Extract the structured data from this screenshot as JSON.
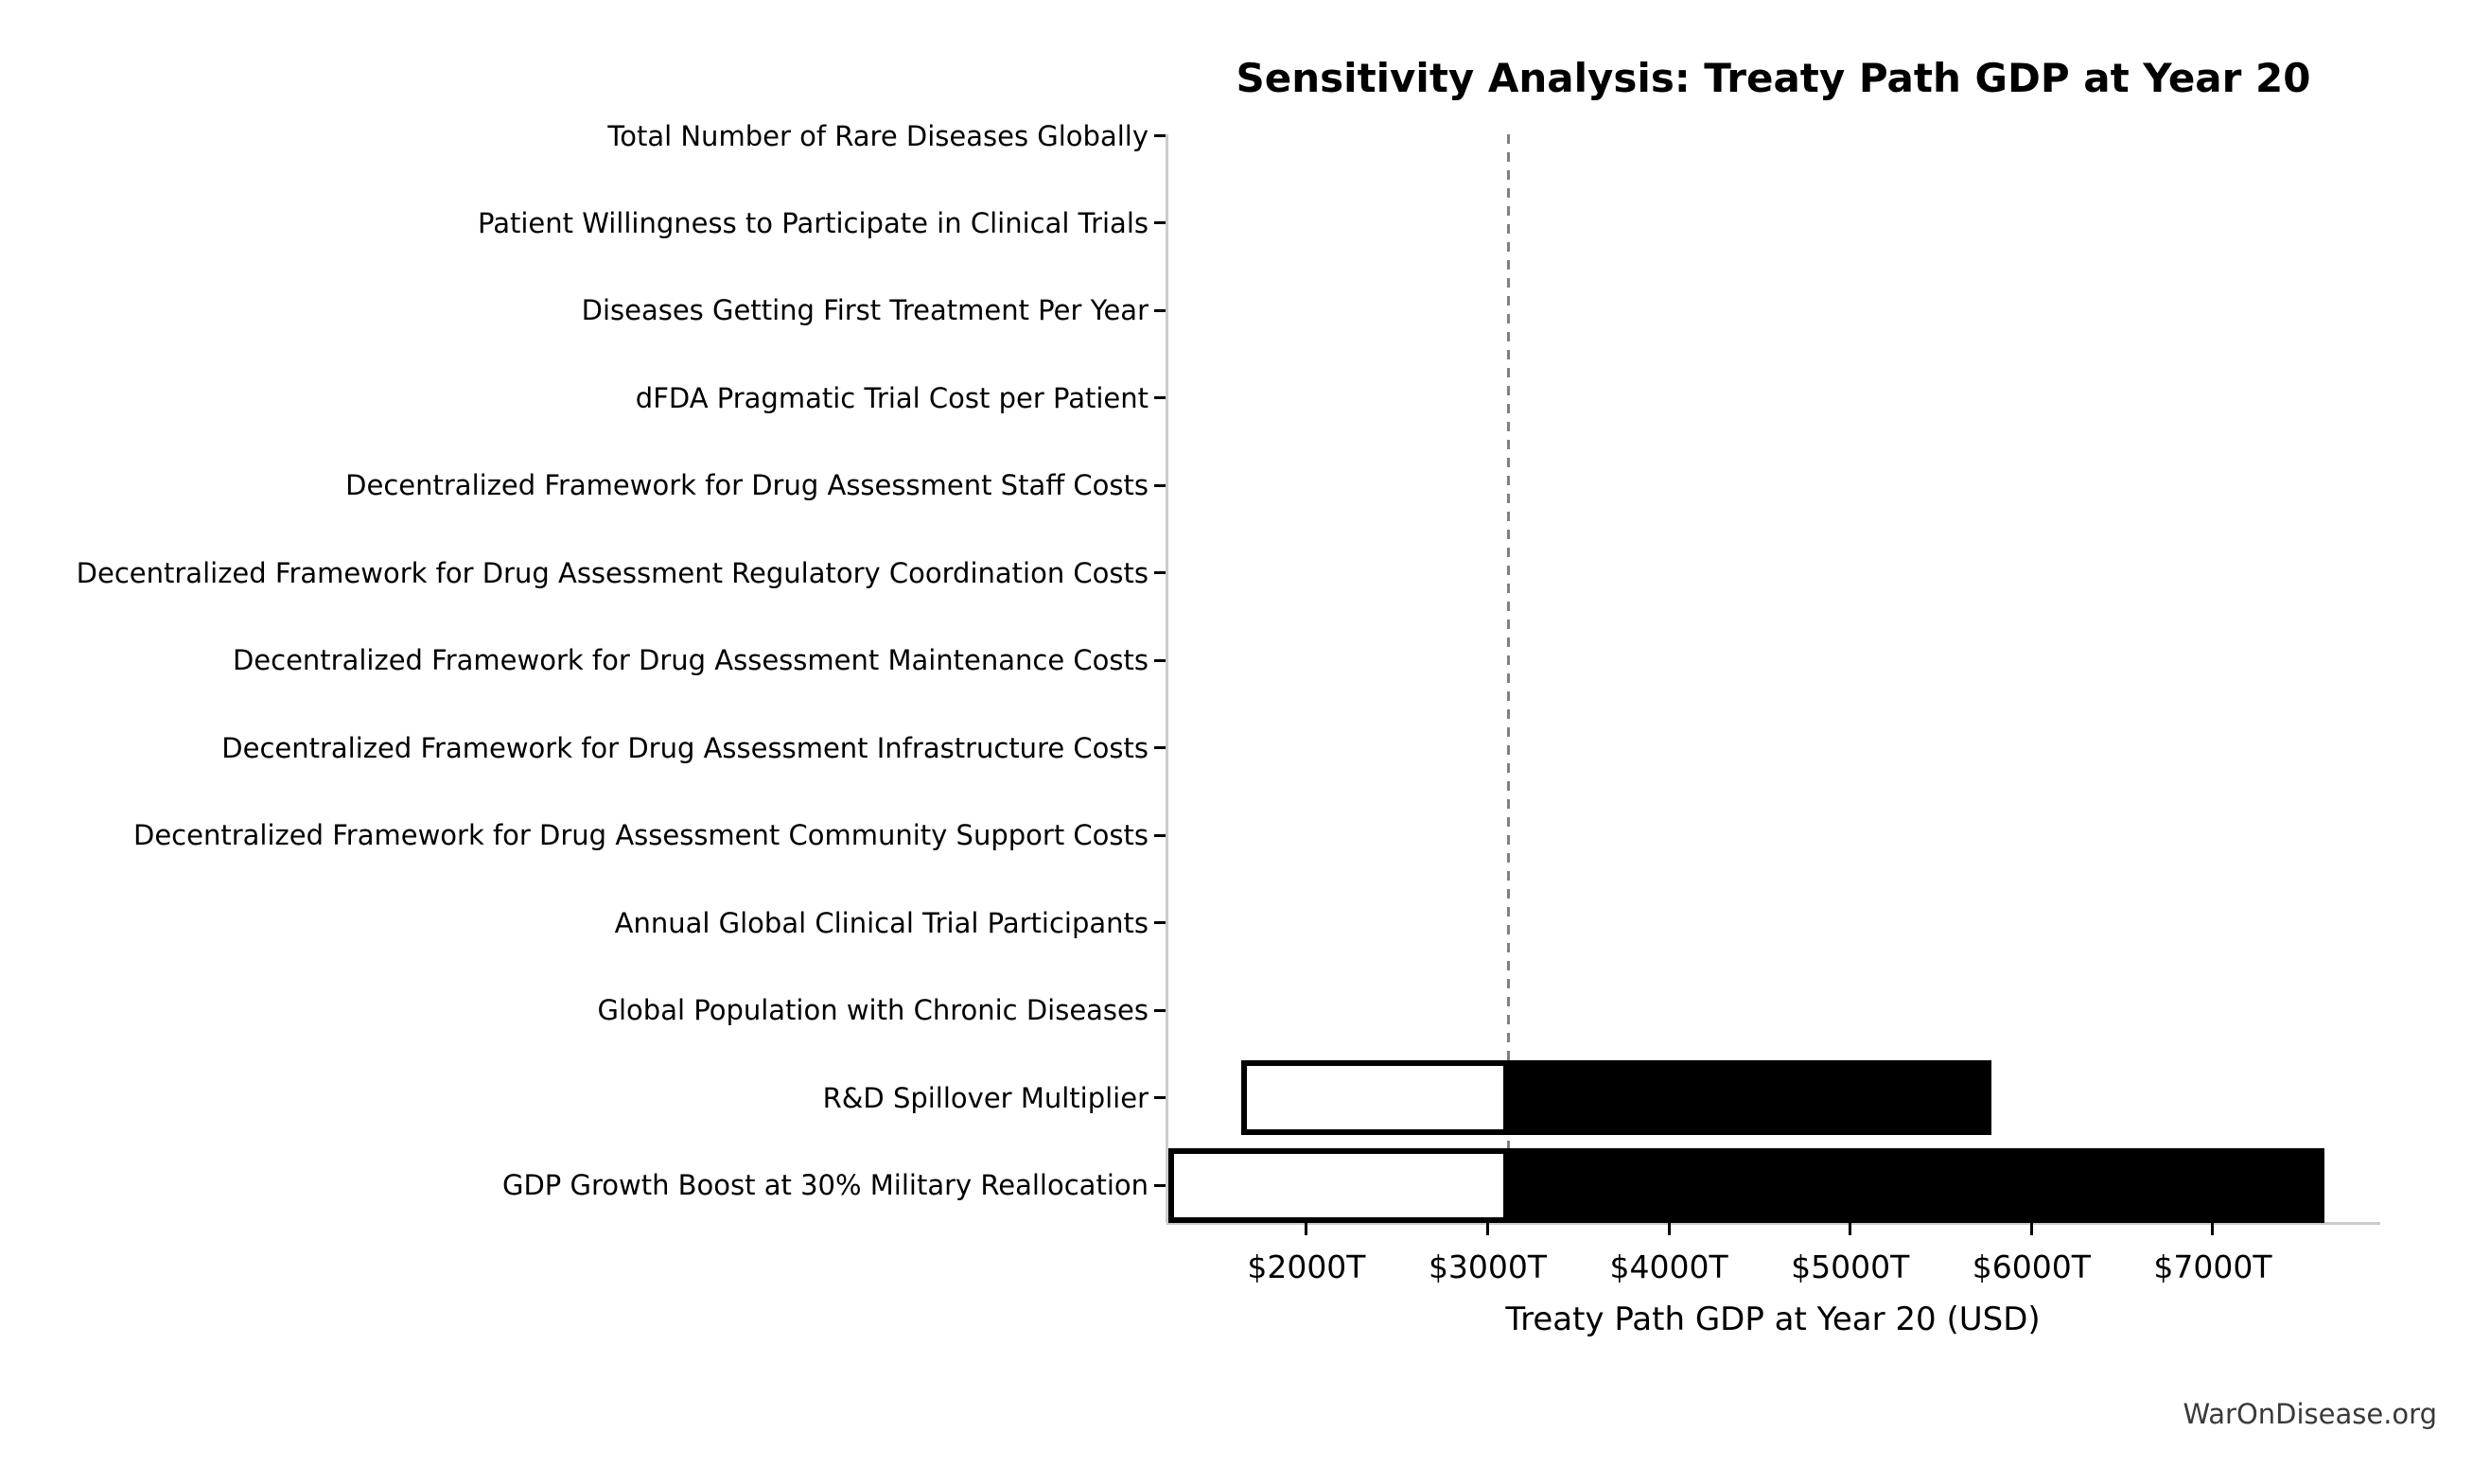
{
  "chart_data": {
    "type": "bar",
    "orientation": "horizontal",
    "variant": "tornado-sensitivity",
    "title": "Sensitivity Analysis: Treaty Path GDP at Year 20",
    "xlabel": "Treaty Path GDP at Year 20 (USD)",
    "ylabel": "",
    "unit": "trillion USD (T)",
    "grid": false,
    "legend": null,
    "watermark": "WarOnDisease.org",
    "categories": [
      "Total Number of Rare Diseases Globally",
      "Patient Willingness to Participate in Clinical Trials",
      "Diseases Getting First Treatment Per Year",
      "dFDA Pragmatic Trial Cost per Patient",
      "Decentralized Framework for Drug Assessment Staff Costs",
      "Decentralized Framework for Drug Assessment Regulatory Coordination Costs",
      "Decentralized Framework for Drug Assessment Maintenance Costs",
      "Decentralized Framework for Drug Assessment Infrastructure Costs",
      "Decentralized Framework for Drug Assessment Community Support Costs",
      "Annual Global Clinical Trial Participants",
      "Global Population with Chronic Diseases",
      "R&D Spillover Multiplier",
      "GDP Growth Boost at 30% Military Reallocation"
    ],
    "xlim": [
      1228,
      7924
    ],
    "xticks": [
      {
        "value": 2000,
        "label": "$2000T"
      },
      {
        "value": 3000,
        "label": "$3000T"
      },
      {
        "value": 4000,
        "label": "$4000T"
      },
      {
        "value": 5000,
        "label": "$5000T"
      },
      {
        "value": 6000,
        "label": "$6000T"
      },
      {
        "value": 7000,
        "label": "$7000T"
      }
    ],
    "baseline": {
      "value": 3115,
      "style": "dashed",
      "color": "#808080"
    },
    "bars": [
      {
        "category": "Total Number of Rare Diseases Globally",
        "low": null,
        "high": null
      },
      {
        "category": "Patient Willingness to Participate in Clinical Trials",
        "low": null,
        "high": null
      },
      {
        "category": "Diseases Getting First Treatment Per Year",
        "low": null,
        "high": null
      },
      {
        "category": "dFDA Pragmatic Trial Cost per Patient",
        "low": null,
        "high": null
      },
      {
        "category": "Decentralized Framework for Drug Assessment Staff Costs",
        "low": null,
        "high": null
      },
      {
        "category": "Decentralized Framework for Drug Assessment Regulatory Coordination Costs",
        "low": null,
        "high": null
      },
      {
        "category": "Decentralized Framework for Drug Assessment Maintenance Costs",
        "low": null,
        "high": null
      },
      {
        "category": "Decentralized Framework for Drug Assessment Infrastructure Costs",
        "low": null,
        "high": null
      },
      {
        "category": "Decentralized Framework for Drug Assessment Community Support Costs",
        "low": null,
        "high": null
      },
      {
        "category": "Annual Global Clinical Trial Participants",
        "low": null,
        "high": null
      },
      {
        "category": "Global Population with Chronic Diseases",
        "low": null,
        "high": null
      },
      {
        "category": "R&D Spillover Multiplier",
        "low": 1640,
        "high": 5780
      },
      {
        "category": "GDP Growth Boost at 30% Military Reallocation",
        "low": 1240,
        "high": 7615
      }
    ],
    "colors": {
      "low_bar_fill": "#ffffff",
      "high_bar_fill": "#000000",
      "bar_edge": "#000000",
      "baseline_line": "#808080",
      "spine": "#cccccc",
      "tick": "#000000",
      "text": "#000000",
      "watermark": "#3a3a3a",
      "background": "#ffffff"
    }
  }
}
